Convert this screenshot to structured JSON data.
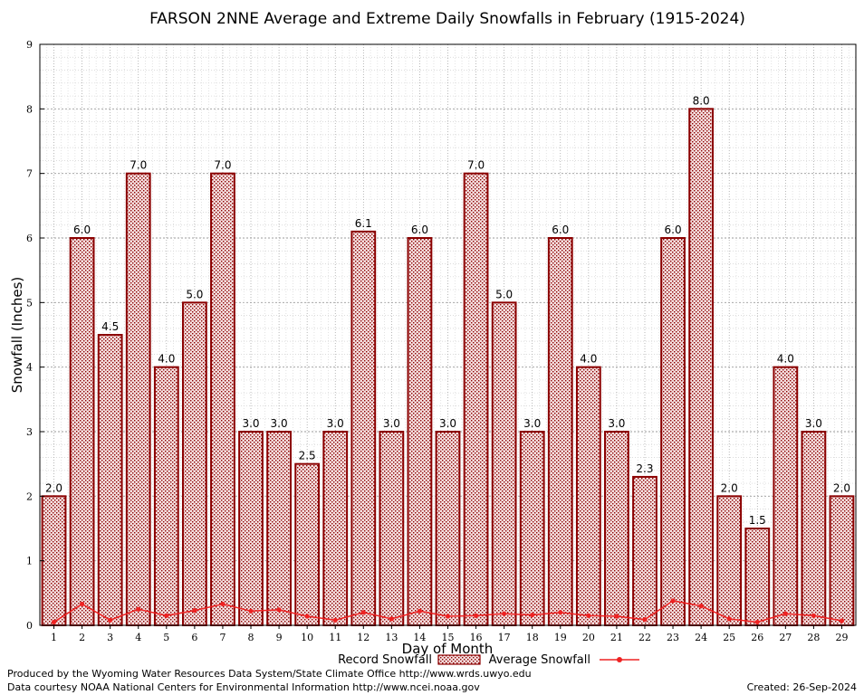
{
  "chart_data": {
    "type": "bar",
    "title": "FARSON 2NNE Average and Extreme Daily Snowfalls in February (1915-2024)",
    "xlabel": "Day of Month",
    "ylabel": "Snowfall (Inches)",
    "ylim": [
      0,
      9
    ],
    "yticks": [
      "0",
      "1",
      "2",
      "3",
      "4",
      "5",
      "6",
      "7",
      "8",
      "9"
    ],
    "categories": [
      "1",
      "2",
      "3",
      "4",
      "5",
      "6",
      "7",
      "8",
      "9",
      "10",
      "11",
      "12",
      "13",
      "14",
      "15",
      "16",
      "17",
      "18",
      "19",
      "20",
      "21",
      "22",
      "23",
      "24",
      "25",
      "26",
      "27",
      "28",
      "29"
    ],
    "grid": true,
    "legend_position": "bottom-center",
    "series": [
      {
        "name": "Record Snowfall",
        "kind": "bar",
        "color": "#8b0000",
        "values": [
          2.0,
          6.0,
          4.5,
          7.0,
          4.0,
          5.0,
          7.0,
          3.0,
          3.0,
          2.5,
          3.0,
          6.1,
          3.0,
          6.0,
          3.0,
          7.0,
          5.0,
          3.0,
          6.0,
          4.0,
          3.0,
          2.3,
          6.0,
          8.0,
          2.0,
          1.5,
          4.0,
          3.0,
          2.0
        ],
        "labels": [
          "2.0",
          "6.0",
          "4.5",
          "7.0",
          "4.0",
          "5.0",
          "7.0",
          "3.0",
          "3.0",
          "2.5",
          "3.0",
          "6.1",
          "3.0",
          "6.0",
          "3.0",
          "7.0",
          "5.0",
          "3.0",
          "6.0",
          "4.0",
          "3.0",
          "2.3",
          "6.0",
          "8.0",
          "2.0",
          "1.5",
          "4.0",
          "3.0",
          "2.0"
        ]
      },
      {
        "name": "Average Snowfall",
        "kind": "line",
        "color": "#ee2222",
        "values": [
          0.05,
          0.33,
          0.08,
          0.25,
          0.15,
          0.23,
          0.33,
          0.22,
          0.24,
          0.14,
          0.08,
          0.2,
          0.1,
          0.22,
          0.14,
          0.15,
          0.18,
          0.16,
          0.2,
          0.15,
          0.14,
          0.09,
          0.38,
          0.3,
          0.1,
          0.05,
          0.18,
          0.15,
          0.07
        ]
      }
    ]
  },
  "footer": {
    "credit": "Produced by the Wyoming Water Resources Data System/State Climate Office http://www.wrds.uwyo.edu",
    "source": "Data courtesy NOAA National Centers for Environmental Information http://www.ncei.noaa.gov",
    "created": "Created:  26-Sep-2024"
  }
}
